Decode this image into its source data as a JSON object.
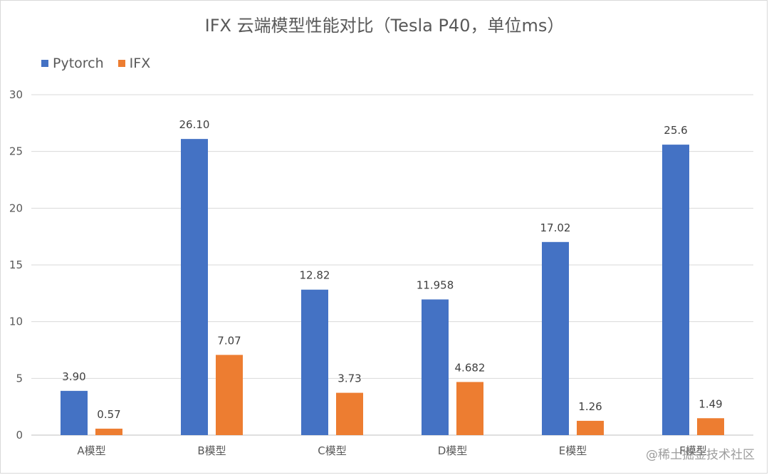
{
  "chart_data": {
    "type": "bar",
    "title": "IFX 云端模型性能对比（Tesla P40，单位ms）",
    "categories": [
      "A模型",
      "B模型",
      "C模型",
      "D模型",
      "E模型",
      "F模型"
    ],
    "series": [
      {
        "name": "Pytorch",
        "color": "#4472C4",
        "values": [
          3.9,
          26.1,
          12.82,
          11.958,
          17.02,
          25.6
        ],
        "labels": [
          "3.90",
          "26.10",
          "12.82",
          "11.958",
          "17.02",
          "25.6"
        ]
      },
      {
        "name": "IFX",
        "color": "#ED7D31",
        "values": [
          0.57,
          7.07,
          3.73,
          4.682,
          1.26,
          1.49
        ],
        "labels": [
          "0.57",
          "7.07",
          "3.73",
          "4.682",
          "1.26",
          "1.49"
        ]
      }
    ],
    "ylim": [
      0,
      30
    ],
    "yticks": [
      0,
      5,
      10,
      15,
      20,
      25,
      30
    ],
    "xlabel": "",
    "ylabel": "",
    "grid": true,
    "legend": "top-left"
  },
  "watermark": "@稀土掘金技术社区"
}
